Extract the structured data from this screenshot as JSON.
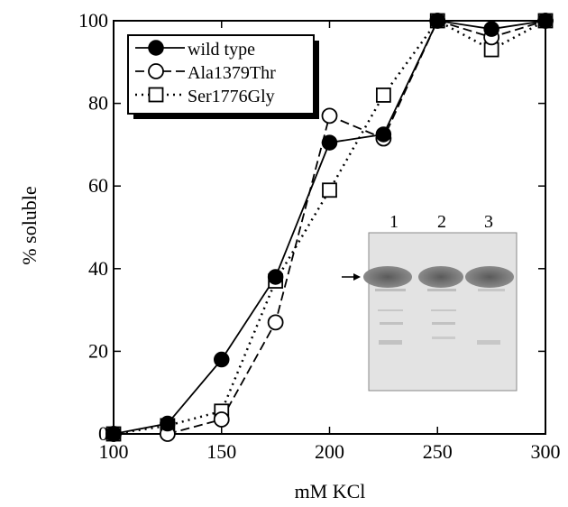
{
  "chart_data": {
    "type": "line",
    "xlabel": "mM KCl",
    "ylabel": "% soluble",
    "xlim": [
      100,
      300
    ],
    "ylim": [
      0,
      100
    ],
    "xticks": [
      100,
      150,
      200,
      250,
      300
    ],
    "yticks": [
      0,
      20,
      40,
      60,
      80,
      100
    ],
    "x": [
      100,
      125,
      150,
      175,
      200,
      225,
      250,
      275,
      300
    ],
    "series": [
      {
        "name": "wild type",
        "marker": "filled-circle",
        "line": "solid",
        "values": [
          0,
          2.5,
          18,
          38,
          70.5,
          72.5,
          100,
          98,
          100
        ]
      },
      {
        "name": "Ala1379Thr",
        "marker": "open-circle",
        "line": "dashed",
        "values": [
          0,
          0,
          3.5,
          27,
          77,
          71.5,
          100,
          96,
          100
        ]
      },
      {
        "name": "Ser1776Gly",
        "marker": "open-square",
        "line": "dotted",
        "values": [
          0,
          2,
          5.5,
          37,
          59,
          82,
          100,
          93,
          100
        ]
      }
    ],
    "legend_position": "top-left",
    "grid": false
  },
  "inset": {
    "lane_labels": [
      "1",
      "2",
      "3"
    ],
    "description_marker": "arrow"
  }
}
